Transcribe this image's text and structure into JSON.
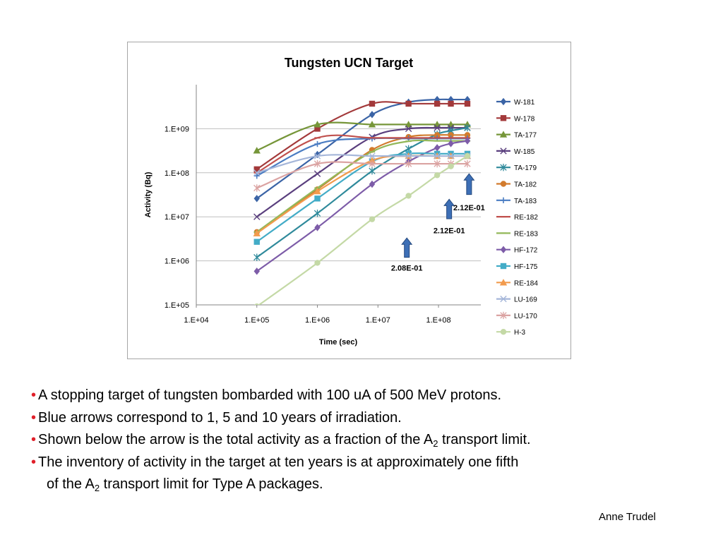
{
  "chart_data": {
    "type": "line",
    "title": "Tungsten UCN Target",
    "xlabel": "Time (sec)",
    "ylabel": "Activity (Bq)",
    "xscale": "log",
    "yscale": "log",
    "xlim": [
      10000,
      500000000
    ],
    "ylim": [
      100000,
      10000000000
    ],
    "xticks": [
      10000,
      100000,
      1000000,
      10000000,
      100000000
    ],
    "xtick_labels": [
      "1.E+04",
      "1.E+05",
      "1.E+06",
      "1.E+07",
      "1.E+08"
    ],
    "yticks": [
      100000,
      1000000,
      10000000,
      100000000,
      1000000000
    ],
    "ytick_labels": [
      "1.E+05",
      "1.E+06",
      "1.E+07",
      "1.E+08",
      "1.E+09"
    ],
    "grid": "horizontal",
    "legend_position": "right",
    "x": [
      100000,
      1000000,
      8000000,
      32000000,
      95000000,
      160000000,
      300000000
    ],
    "series": [
      {
        "name": "W-181",
        "color": "#3b64a6",
        "marker": "diamond",
        "values": [
          26000000,
          260000000,
          2100000000,
          4000000000,
          4600000000,
          4600000000,
          4600000000
        ]
      },
      {
        "name": "W-178",
        "color": "#a3393a",
        "marker": "square",
        "values": [
          120000000,
          1000000000,
          3700000000,
          3700000000,
          3700000000,
          3700000000,
          3700000000
        ]
      },
      {
        "name": "TA-177",
        "color": "#769639",
        "marker": "triangle",
        "values": [
          320000000,
          1250000000,
          1250000000,
          1250000000,
          1250000000,
          1250000000,
          1250000000
        ]
      },
      {
        "name": "W-185",
        "color": "#5a3f7e",
        "marker": "x",
        "values": [
          10000000,
          95000000,
          650000000,
          1000000000,
          1050000000,
          1050000000,
          1050000000
        ]
      },
      {
        "name": "TA-179",
        "color": "#2f8a9b",
        "marker": "star",
        "values": [
          1200000,
          12000000,
          110000000,
          350000000,
          750000000,
          900000000,
          1050000000
        ]
      },
      {
        "name": "TA-182",
        "color": "#d27b2d",
        "marker": "circle",
        "values": [
          4500000,
          42000000,
          330000000,
          650000000,
          720000000,
          720000000,
          720000000
        ]
      },
      {
        "name": "TA-183",
        "color": "#4a7cc2",
        "marker": "plus",
        "values": [
          85000000,
          450000000,
          600000000,
          600000000,
          600000000,
          600000000,
          600000000
        ]
      },
      {
        "name": "RE-182",
        "color": "#c0504d",
        "marker": "dash",
        "values": [
          100000000,
          620000000,
          620000000,
          620000000,
          620000000,
          620000000,
          620000000
        ]
      },
      {
        "name": "RE-183",
        "color": "#93b85a",
        "marker": "dash",
        "values": [
          4500000,
          45000000,
          300000000,
          520000000,
          530000000,
          530000000,
          530000000
        ]
      },
      {
        "name": "HF-172",
        "color": "#7d5ca8",
        "marker": "diamond",
        "values": [
          580000,
          5700000,
          55000000,
          180000000,
          370000000,
          460000000,
          530000000
        ]
      },
      {
        "name": "HF-175",
        "color": "#43acc7",
        "marker": "square",
        "values": [
          2700000,
          26000000,
          180000000,
          270000000,
          270000000,
          270000000,
          270000000
        ]
      },
      {
        "name": "RE-184",
        "color": "#f29b4d",
        "marker": "triangle",
        "values": [
          4200000,
          38000000,
          190000000,
          240000000,
          240000000,
          240000000,
          240000000
        ]
      },
      {
        "name": "LU-169",
        "color": "#a5b6d9",
        "marker": "x",
        "values": [
          100000000,
          240000000,
          240000000,
          240000000,
          240000000,
          240000000,
          240000000
        ]
      },
      {
        "name": "LU-170",
        "color": "#dba3a2",
        "marker": "star",
        "values": [
          45000000,
          160000000,
          160000000,
          160000000,
          160000000,
          160000000,
          160000000
        ]
      },
      {
        "name": "H-3",
        "color": "#c4d9a6",
        "marker": "circle",
        "values": [
          92000,
          900000,
          8800000,
          30000000,
          88000000,
          140000000,
          240000000
        ]
      }
    ],
    "annotations": [
      {
        "text": "2.08E-01",
        "x": 30000000,
        "arrow_from_y": 1200000,
        "arrow_to_y": 3300000,
        "label_y": 600000
      },
      {
        "text": "2.12E-01",
        "x": 150000000,
        "arrow_from_y": 9000000,
        "arrow_to_y": 25000000,
        "label_y": 4200000
      },
      {
        "text": "2.12E-01",
        "x": 320000000,
        "arrow_from_y": 32000000,
        "arrow_to_y": 95000000,
        "label_y": 14000000
      }
    ]
  },
  "bullets": [
    {
      "pre": "A stopping target of tungsten bombarded with 100 uA of 500 MeV protons."
    },
    {
      "pre": "Blue arrows correspond to 1, 5 and 10 years of irradiation."
    },
    {
      "pre": "Shown below the arrow is the total activity as a fraction of the A",
      "sub": "2",
      "post": " transport limit."
    },
    {
      "pre": "The inventory of activity in the target at ten years is at approximately one fifth"
    }
  ],
  "bullet_continuation": {
    "pre": "of the A",
    "sub": "2",
    "post": " transport limit for Type A packages."
  },
  "bullet_marker": "•",
  "arrow_color": "#3d6fb6",
  "author": "Anne Trudel"
}
